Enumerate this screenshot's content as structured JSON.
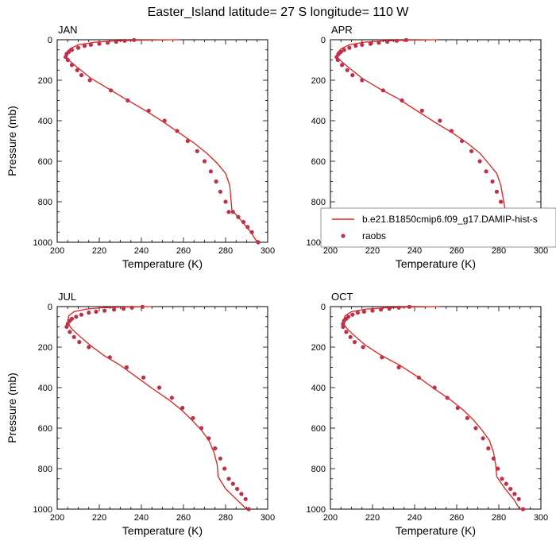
{
  "title": "Easter_Island  latitude= 27 S longitude= 110 W",
  "xlabel": "Temperature (K)",
  "ylabel": "Pressure (mb)",
  "legend": {
    "model_label": "b.e21.B1850cmip6.f09_g17.DAMIP-hist-s",
    "obs_label": "raobs"
  },
  "colors": {
    "model_line": "#e0201c",
    "obs_marker": "#c0304a"
  },
  "chart_data": [
    {
      "type": "line",
      "panel": "JAN",
      "xlim": [
        200,
        300
      ],
      "ylim": [
        1000,
        0
      ],
      "xticks": [
        200,
        220,
        240,
        260,
        280,
        300
      ],
      "yticks": [
        0,
        200,
        400,
        600,
        800,
        1000
      ],
      "series": [
        {
          "name": "b.e21.B1850cmip6.f09_g17.DAMIP-hist-s",
          "x": [
            258,
            240,
            228,
            218,
            210,
            206,
            204,
            204.5,
            206.5,
            210,
            216,
            224,
            232,
            242,
            251,
            258,
            265,
            271,
            276,
            280,
            282,
            282.5,
            283,
            288,
            292,
            295
          ],
          "y": [
            0,
            2,
            5,
            12,
            25,
            45,
            70,
            90,
            110,
            140,
            190,
            240,
            290,
            350,
            410,
            460,
            510,
            560,
            610,
            660,
            720,
            780,
            840,
            900,
            950,
            1000
          ]
        },
        {
          "name": "raobs",
          "x": [
            236.5,
            232,
            228,
            224,
            220,
            216,
            213,
            210,
            207,
            205.5,
            204.5,
            204,
            205,
            207,
            209.5,
            211.5,
            215.5,
            225.5,
            233.5,
            243.5,
            251,
            257,
            262,
            266.5,
            270,
            273,
            275.5,
            277.5,
            280,
            281.5,
            283.5,
            286,
            288.5,
            290.5,
            292.5,
            295.5
          ],
          "y": [
            1,
            5,
            10,
            15,
            20,
            25,
            30,
            40,
            50,
            60,
            70,
            85,
            100,
            125,
            150,
            175,
            200,
            250,
            300,
            350,
            400,
            450,
            500,
            550,
            600,
            650,
            700,
            750,
            800,
            850,
            850,
            875,
            900,
            925,
            950,
            1000
          ]
        }
      ]
    },
    {
      "type": "line",
      "panel": "APR",
      "xlim": [
        200,
        300
      ],
      "ylim": [
        1000,
        0
      ],
      "xticks": [
        200,
        220,
        240,
        260,
        280,
        300
      ],
      "yticks": [
        0,
        200,
        400,
        600,
        800,
        1000
      ],
      "series": [
        {
          "name": "b.e21.B1850cmip6.f09_g17.DAMIP-hist-s",
          "x": [
            251,
            238,
            226,
            216,
            209,
            205,
            203,
            203.5,
            205.5,
            209,
            215,
            223,
            232,
            241,
            250,
            258,
            265,
            271,
            275,
            279,
            281,
            282,
            283,
            287,
            291,
            294
          ],
          "y": [
            0,
            2,
            5,
            12,
            25,
            45,
            70,
            90,
            110,
            140,
            190,
            240,
            290,
            350,
            410,
            460,
            510,
            560,
            610,
            660,
            720,
            780,
            840,
            900,
            950,
            1000
          ]
        },
        {
          "name": "raobs",
          "x": [
            236,
            231.5,
            227,
            223,
            219,
            215,
            212,
            209,
            206.5,
            205,
            204,
            203,
            203.5,
            205.5,
            208,
            210.5,
            215,
            225,
            234,
            243.5,
            252,
            257.5,
            262.5,
            267,
            271,
            274,
            277,
            279,
            281,
            283,
            285,
            288,
            291,
            293,
            295
          ],
          "y": [
            1,
            5,
            10,
            15,
            20,
            25,
            30,
            40,
            50,
            60,
            70,
            85,
            100,
            125,
            150,
            175,
            200,
            250,
            300,
            350,
            400,
            450,
            500,
            550,
            600,
            650,
            700,
            750,
            800,
            850,
            875,
            900,
            925,
            950,
            1000
          ]
        }
      ]
    },
    {
      "type": "line",
      "panel": "JUL",
      "xlim": [
        200,
        300
      ],
      "ylim": [
        1000,
        0
      ],
      "xticks": [
        200,
        220,
        240,
        260,
        280,
        300
      ],
      "yticks": [
        0,
        200,
        400,
        600,
        800,
        1000
      ],
      "series": [
        {
          "name": "b.e21.B1850cmip6.f09_g17.DAMIP-hist-s",
          "x": [
            245,
            233,
            222,
            214,
            208,
            205.5,
            205,
            205.5,
            207,
            210,
            215.5,
            222,
            230,
            238,
            246,
            253,
            259,
            264,
            268.5,
            272,
            274.5,
            276,
            276.5,
            280,
            285,
            290
          ],
          "y": [
            0,
            2,
            5,
            12,
            25,
            45,
            70,
            90,
            110,
            140,
            190,
            240,
            290,
            350,
            410,
            460,
            510,
            560,
            610,
            660,
            720,
            780,
            840,
            900,
            950,
            1000
          ]
        },
        {
          "name": "raobs",
          "x": [
            240.5,
            235.5,
            231.5,
            227,
            222.5,
            218.5,
            215,
            211.5,
            209,
            207,
            206,
            205,
            204.5,
            206,
            208,
            210.5,
            215,
            225,
            233,
            241,
            248.5,
            254.5,
            259.5,
            264.5,
            268.5,
            272,
            275,
            277.5,
            279.5,
            281.5,
            283.5,
            285.5,
            287.5,
            289.5,
            291
          ],
          "y": [
            1,
            5,
            10,
            15,
            20,
            25,
            30,
            40,
            50,
            60,
            70,
            85,
            100,
            125,
            150,
            175,
            200,
            250,
            300,
            350,
            400,
            450,
            500,
            550,
            600,
            650,
            700,
            750,
            800,
            850,
            875,
            900,
            925,
            950,
            1000
          ]
        }
      ]
    },
    {
      "type": "line",
      "panel": "OCT",
      "xlim": [
        200,
        300
      ],
      "ylim": [
        1000,
        0
      ],
      "xticks": [
        200,
        220,
        240,
        260,
        280,
        300
      ],
      "yticks": [
        0,
        200,
        400,
        600,
        800,
        1000
      ],
      "series": [
        {
          "name": "b.e21.B1850cmip6.f09_g17.DAMIP-hist-s",
          "x": [
            252,
            239,
            227,
            217,
            210,
            207,
            206,
            206.5,
            208,
            211,
            216.5,
            224,
            233,
            242,
            250,
            257,
            263,
            268,
            272,
            275.5,
            277.5,
            278.5,
            279,
            283,
            287,
            290
          ],
          "y": [
            0,
            2,
            5,
            12,
            25,
            45,
            70,
            90,
            110,
            140,
            190,
            240,
            290,
            350,
            410,
            460,
            510,
            560,
            610,
            660,
            720,
            780,
            840,
            900,
            950,
            1000
          ]
        },
        {
          "name": "raobs",
          "x": [
            237.5,
            232.5,
            228,
            224,
            220,
            216,
            213,
            210.5,
            208.5,
            207.5,
            206.5,
            206,
            206,
            207.5,
            209.5,
            211.5,
            215.5,
            224.5,
            232.5,
            242,
            249.5,
            255.5,
            260.5,
            265,
            269,
            272.5,
            275,
            277.5,
            279.5,
            281.5,
            283.5,
            285.5,
            287.5,
            289.5,
            291.5
          ],
          "y": [
            1,
            5,
            10,
            15,
            20,
            25,
            30,
            40,
            50,
            60,
            70,
            85,
            100,
            125,
            150,
            175,
            200,
            250,
            300,
            350,
            400,
            450,
            500,
            550,
            600,
            650,
            700,
            750,
            800,
            850,
            875,
            900,
            925,
            950,
            1000
          ]
        }
      ]
    }
  ]
}
